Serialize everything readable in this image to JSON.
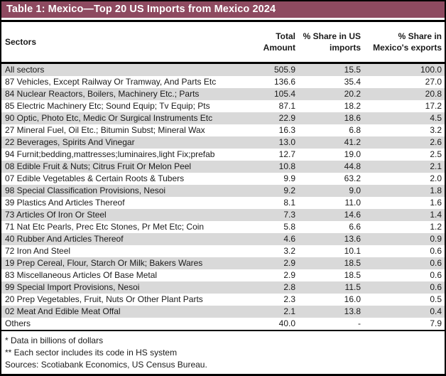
{
  "title": "Table 1: Mexico—Top 20 US Imports from Mexico 2024",
  "colors": {
    "title_bg": "#8E4A60",
    "stripe": "#D9D9D9",
    "border": "#000000",
    "text": "#1A1A1A"
  },
  "table": {
    "header": {
      "sectors": "Sectors",
      "total_line1": "Total",
      "total_line2": "Amount",
      "us_line1": "% Share in US",
      "us_line2": "imports",
      "mx_line1": "% Share in",
      "mx_line2": "Mexico's exports"
    },
    "rows": [
      {
        "sector": "All sectors",
        "total": "505.9",
        "us_share": "15.5",
        "mx_share": "100.0"
      },
      {
        "sector": "87 Vehicles, Except Railway Or Tramway, And Parts Etc",
        "total": "136.6",
        "us_share": "35.4",
        "mx_share": "27.0"
      },
      {
        "sector": "84 Nuclear Reactors, Boilers, Machinery Etc.; Parts",
        "total": "105.4",
        "us_share": "20.2",
        "mx_share": "20.8"
      },
      {
        "sector": "85 Electric Machinery Etc; Sound Equip; Tv Equip; Pts",
        "total": "87.1",
        "us_share": "18.2",
        "mx_share": "17.2"
      },
      {
        "sector": "90 Optic, Photo Etc, Medic Or Surgical Instruments Etc",
        "total": "22.9",
        "us_share": "18.6",
        "mx_share": "4.5"
      },
      {
        "sector": "27 Mineral Fuel, Oil Etc.; Bitumin Subst; Mineral Wax",
        "total": "16.3",
        "us_share": "6.8",
        "mx_share": "3.2"
      },
      {
        "sector": "22 Beverages, Spirits And Vinegar",
        "total": "13.0",
        "us_share": "41.2",
        "mx_share": "2.6"
      },
      {
        "sector": "94 Furnit;bedding,mattresses;luminaires,light Fix;prefab",
        "total": "12.7",
        "us_share": "19.0",
        "mx_share": "2.5"
      },
      {
        "sector": "08 Edible Fruit & Nuts; Citrus Fruit Or Melon Peel",
        "total": "10.8",
        "us_share": "44.8",
        "mx_share": "2.1"
      },
      {
        "sector": "07 Edible Vegetables & Certain Roots & Tubers",
        "total": "9.9",
        "us_share": "63.2",
        "mx_share": "2.0"
      },
      {
        "sector": "98 Special Classification Provisions, Nesoi",
        "total": "9.2",
        "us_share": "9.0",
        "mx_share": "1.8"
      },
      {
        "sector": "39 Plastics And Articles Thereof",
        "total": "8.1",
        "us_share": "11.0",
        "mx_share": "1.6"
      },
      {
        "sector": "73 Articles Of Iron Or Steel",
        "total": "7.3",
        "us_share": "14.6",
        "mx_share": "1.4"
      },
      {
        "sector": "71 Nat Etc Pearls, Prec Etc Stones, Pr Met Etc; Coin",
        "total": "5.8",
        "us_share": "6.6",
        "mx_share": "1.2"
      },
      {
        "sector": "40 Rubber And Articles Thereof",
        "total": "4.6",
        "us_share": "13.6",
        "mx_share": "0.9"
      },
      {
        "sector": "72 Iron And Steel",
        "total": "3.2",
        "us_share": "10.1",
        "mx_share": "0.6"
      },
      {
        "sector": "19 Prep Cereal, Flour, Starch Or Milk; Bakers Wares",
        "total": "2.9",
        "us_share": "18.5",
        "mx_share": "0.6"
      },
      {
        "sector": "83 Miscellaneous Articles Of Base Metal",
        "total": "2.9",
        "us_share": "18.5",
        "mx_share": "0.6"
      },
      {
        "sector": "99 Special Import Provisions, Nesoi",
        "total": "2.8",
        "us_share": "11.5",
        "mx_share": "0.6"
      },
      {
        "sector": "20 Prep Vegetables, Fruit, Nuts Or Other Plant Parts",
        "total": "2.3",
        "us_share": "16.0",
        "mx_share": "0.5"
      },
      {
        "sector": "02 Meat And Edible Meat Offal",
        "total": "2.1",
        "us_share": "13.8",
        "mx_share": "0.4"
      },
      {
        "sector": "Others",
        "total": "40.0",
        "us_share": "-",
        "mx_share": "7.9"
      }
    ]
  },
  "footnotes": [
    "* Data in billions of dollars",
    "** Each sector includes its code in HS system",
    "Sources: Scotiabank Economics, US Census Bureau."
  ]
}
